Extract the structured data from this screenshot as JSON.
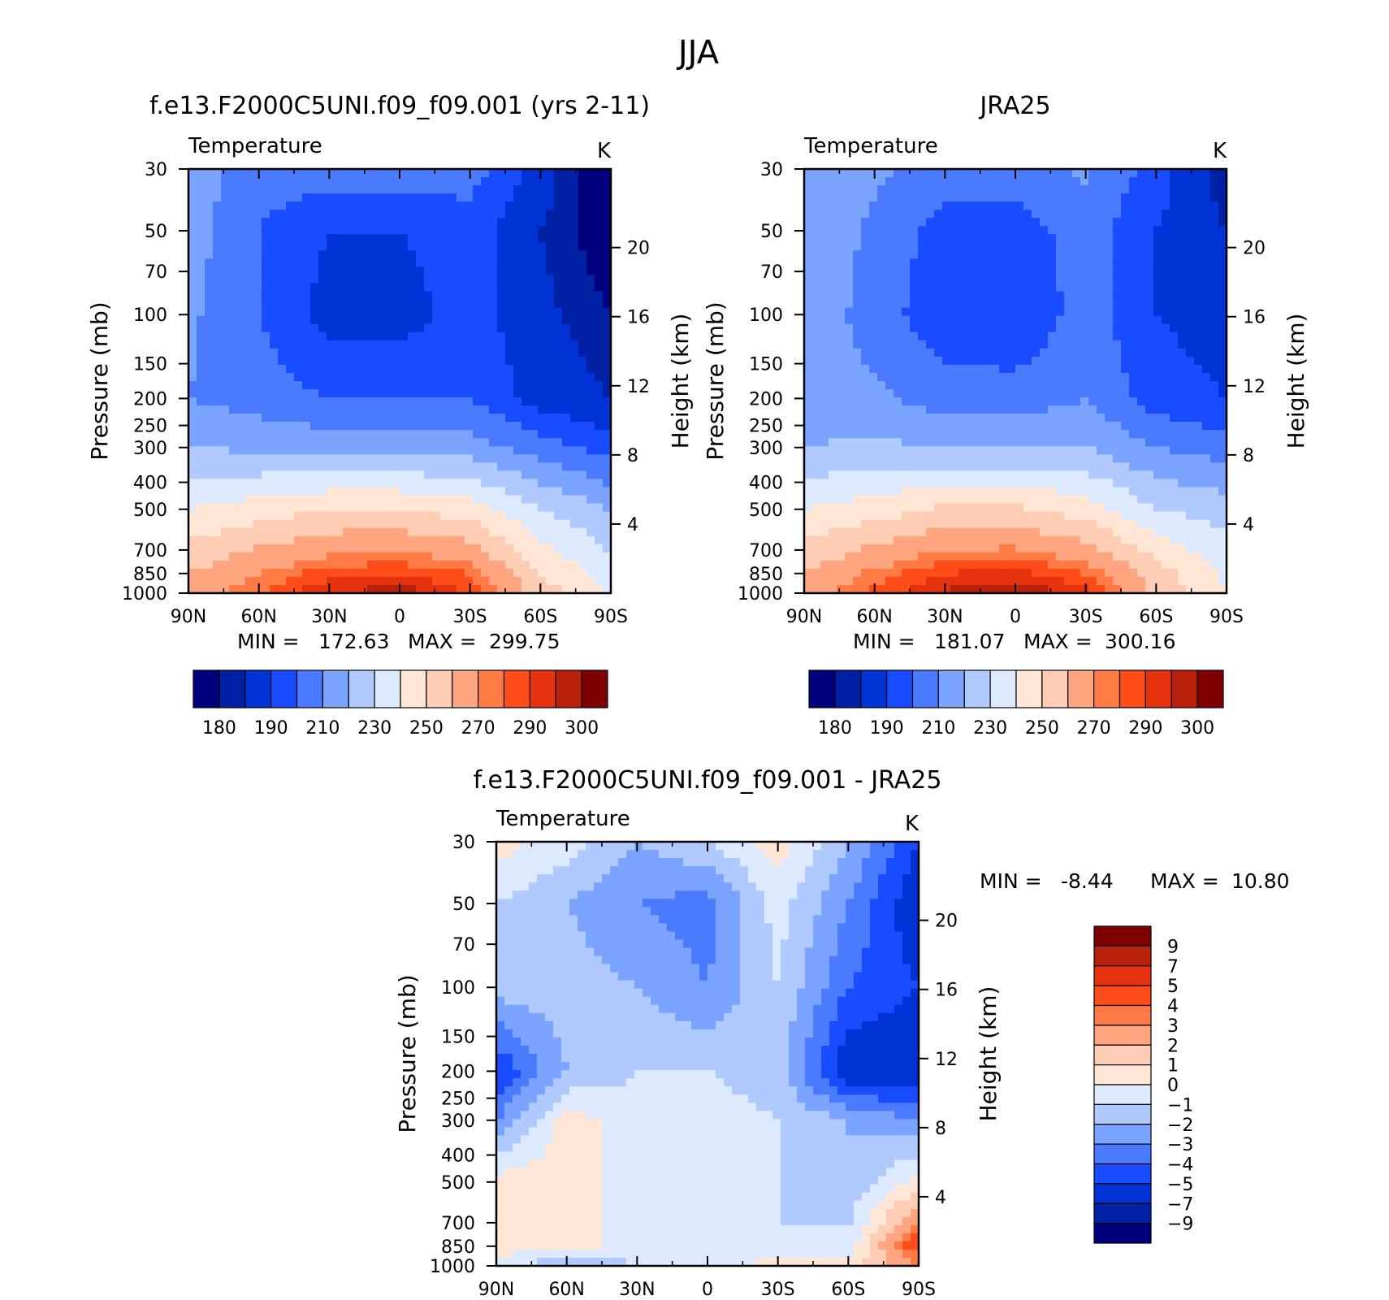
{
  "figure_title": "JJA",
  "colors": {
    "absolute_levels": [
      "#00007f",
      "#0021a6",
      "#0033d6",
      "#1a4cff",
      "#4a7bff",
      "#7aa4ff",
      "#b0caff",
      "#dce9ff",
      "#ffe6d5",
      "#ffcdb3",
      "#ffa57f",
      "#ff7a45",
      "#ff4d1a",
      "#e6320f",
      "#b8200a",
      "#7f0000"
    ],
    "difference_levels": [
      "#00007f",
      "#0021a6",
      "#0033d6",
      "#1a4cff",
      "#4a7bff",
      "#7aa4ff",
      "#b0caff",
      "#dce9ff",
      "#ffe6d5",
      "#ffcdb3",
      "#ffa57f",
      "#ff7a45",
      "#ff4d1a",
      "#e6320f",
      "#b8200a",
      "#7f0000"
    ]
  },
  "chart_data": [
    {
      "type": "heatmap",
      "title": "f.e13.F2000C5UNI.f09_f09.001 (yrs 2-11)",
      "variable_label": "Temperature",
      "units": "K",
      "ylabel": "Pressure (mb)",
      "ylabel_right": "Height (km)",
      "x_ticklabels": [
        "90N",
        "60N",
        "30N",
        "0",
        "30S",
        "60S",
        "90S"
      ],
      "y_ticklabels": [
        "30",
        "50",
        "70",
        "100",
        "150",
        "200",
        "250",
        "300",
        "400",
        "500",
        "700",
        "850",
        "1000"
      ],
      "y_right_ticklabels": [
        "4",
        "8",
        "12",
        "16",
        "20"
      ],
      "min_label": "MIN =",
      "min_value": "172.63",
      "max_label": "MAX =",
      "max_value": "299.75",
      "colorbar_orientation": "horizontal",
      "colorbar_labels": [
        "180",
        "190",
        "210",
        "230",
        "250",
        "270",
        "290",
        "300"
      ],
      "field": {
        "latitude": [
          90,
          60,
          30,
          0,
          -30,
          -60,
          -90
        ],
        "pressure": [
          30,
          50,
          100,
          200,
          300,
          500,
          850,
          1000
        ],
        "temperature": [
          [
            225,
            215,
            215,
            215,
            215,
            195,
            175
          ],
          [
            225,
            210,
            200,
            200,
            205,
            190,
            180
          ],
          [
            222,
            210,
            196,
            195,
            205,
            192,
            185
          ],
          [
            220,
            215,
            210,
            210,
            210,
            195,
            190
          ],
          [
            230,
            228,
            226,
            226,
            225,
            215,
            205
          ],
          [
            250,
            255,
            260,
            260,
            255,
            240,
            230
          ],
          [
            270,
            280,
            288,
            290,
            285,
            260,
            245
          ],
          [
            275,
            285,
            295,
            298,
            290,
            265,
            250
          ]
        ]
      }
    },
    {
      "type": "heatmap",
      "title": "JRA25",
      "variable_label": "Temperature",
      "units": "K",
      "ylabel": "Pressure (mb)",
      "ylabel_right": "Height (km)",
      "x_ticklabels": [
        "90N",
        "60N",
        "30N",
        "0",
        "30S",
        "60S",
        "90S"
      ],
      "y_ticklabels": [
        "30",
        "50",
        "70",
        "100",
        "150",
        "200",
        "250",
        "300",
        "400",
        "500",
        "700",
        "850",
        "1000"
      ],
      "y_right_ticklabels": [
        "4",
        "8",
        "12",
        "16",
        "20"
      ],
      "min_label": "MIN =",
      "min_value": "181.07",
      "max_label": "MAX =",
      "max_value": "300.16",
      "colorbar_orientation": "horizontal",
      "colorbar_labels": [
        "180",
        "190",
        "210",
        "230",
        "250",
        "270",
        "290",
        "300"
      ],
      "field": {
        "latitude": [
          90,
          60,
          30,
          0,
          -30,
          -60,
          -90
        ],
        "pressure": [
          30,
          50,
          100,
          200,
          300,
          500,
          850,
          1000
        ],
        "temperature": [
          [
            226,
            222,
            215,
            215,
            222,
            205,
            185
          ],
          [
            228,
            218,
            205,
            205,
            215,
            200,
            190
          ],
          [
            228,
            215,
            203,
            200,
            215,
            200,
            195
          ],
          [
            225,
            222,
            215,
            215,
            220,
            205,
            200
          ],
          [
            230,
            232,
            230,
            230,
            230,
            220,
            215
          ],
          [
            250,
            255,
            262,
            262,
            255,
            240,
            235
          ],
          [
            270,
            282,
            290,
            292,
            285,
            265,
            248
          ],
          [
            276,
            287,
            296,
            300,
            292,
            268,
            250
          ]
        ]
      }
    },
    {
      "type": "heatmap",
      "title": "f.e13.F2000C5UNI.f09_f09.001 - JRA25",
      "variable_label": "Temperature",
      "units": "K",
      "ylabel": "Pressure (mb)",
      "ylabel_right": "Height (km)",
      "x_ticklabels": [
        "90N",
        "60N",
        "30N",
        "0",
        "30S",
        "60S",
        "90S"
      ],
      "y_ticklabels": [
        "30",
        "50",
        "70",
        "100",
        "150",
        "200",
        "250",
        "300",
        "400",
        "500",
        "700",
        "850",
        "1000"
      ],
      "y_right_ticklabels": [
        "4",
        "8",
        "12",
        "16",
        "20"
      ],
      "min_label": "MIN =",
      "min_value": "-8.44",
      "max_label": "MAX =",
      "max_value": "10.80",
      "colorbar_orientation": "vertical",
      "colorbar_labels": [
        "9",
        "7",
        "5",
        "4",
        "3",
        "2",
        "1",
        "0",
        "-1",
        "-2",
        "-3",
        "-4",
        "-5",
        "-7",
        "-9"
      ],
      "field": {
        "latitude": [
          90,
          60,
          30,
          0,
          -30,
          -60,
          -90
        ],
        "pressure": [
          30,
          50,
          100,
          200,
          300,
          500,
          850,
          1000
        ],
        "temperature_difference": [
          [
            0.5,
            -0.5,
            -2,
            -1,
            0.5,
            -2,
            -5
          ],
          [
            -1,
            -2,
            -3,
            -3.5,
            -0.5,
            -3,
            -6
          ],
          [
            -1.5,
            -1.5,
            -2,
            -3,
            -1,
            -4,
            -5
          ],
          [
            -5,
            -2,
            -1,
            -1,
            -1.5,
            -6,
            -6
          ],
          [
            -3,
            0.5,
            -0.5,
            -0.5,
            -1,
            -2,
            -3
          ],
          [
            0.5,
            0.5,
            -0.5,
            -0.5,
            -1,
            -2,
            0.5
          ],
          [
            0.5,
            0.5,
            -0.5,
            -0.5,
            -1,
            -0.5,
            5
          ],
          [
            -0.5,
            -2,
            -1,
            -0.5,
            0.5,
            0.5,
            3
          ]
        ]
      }
    }
  ]
}
